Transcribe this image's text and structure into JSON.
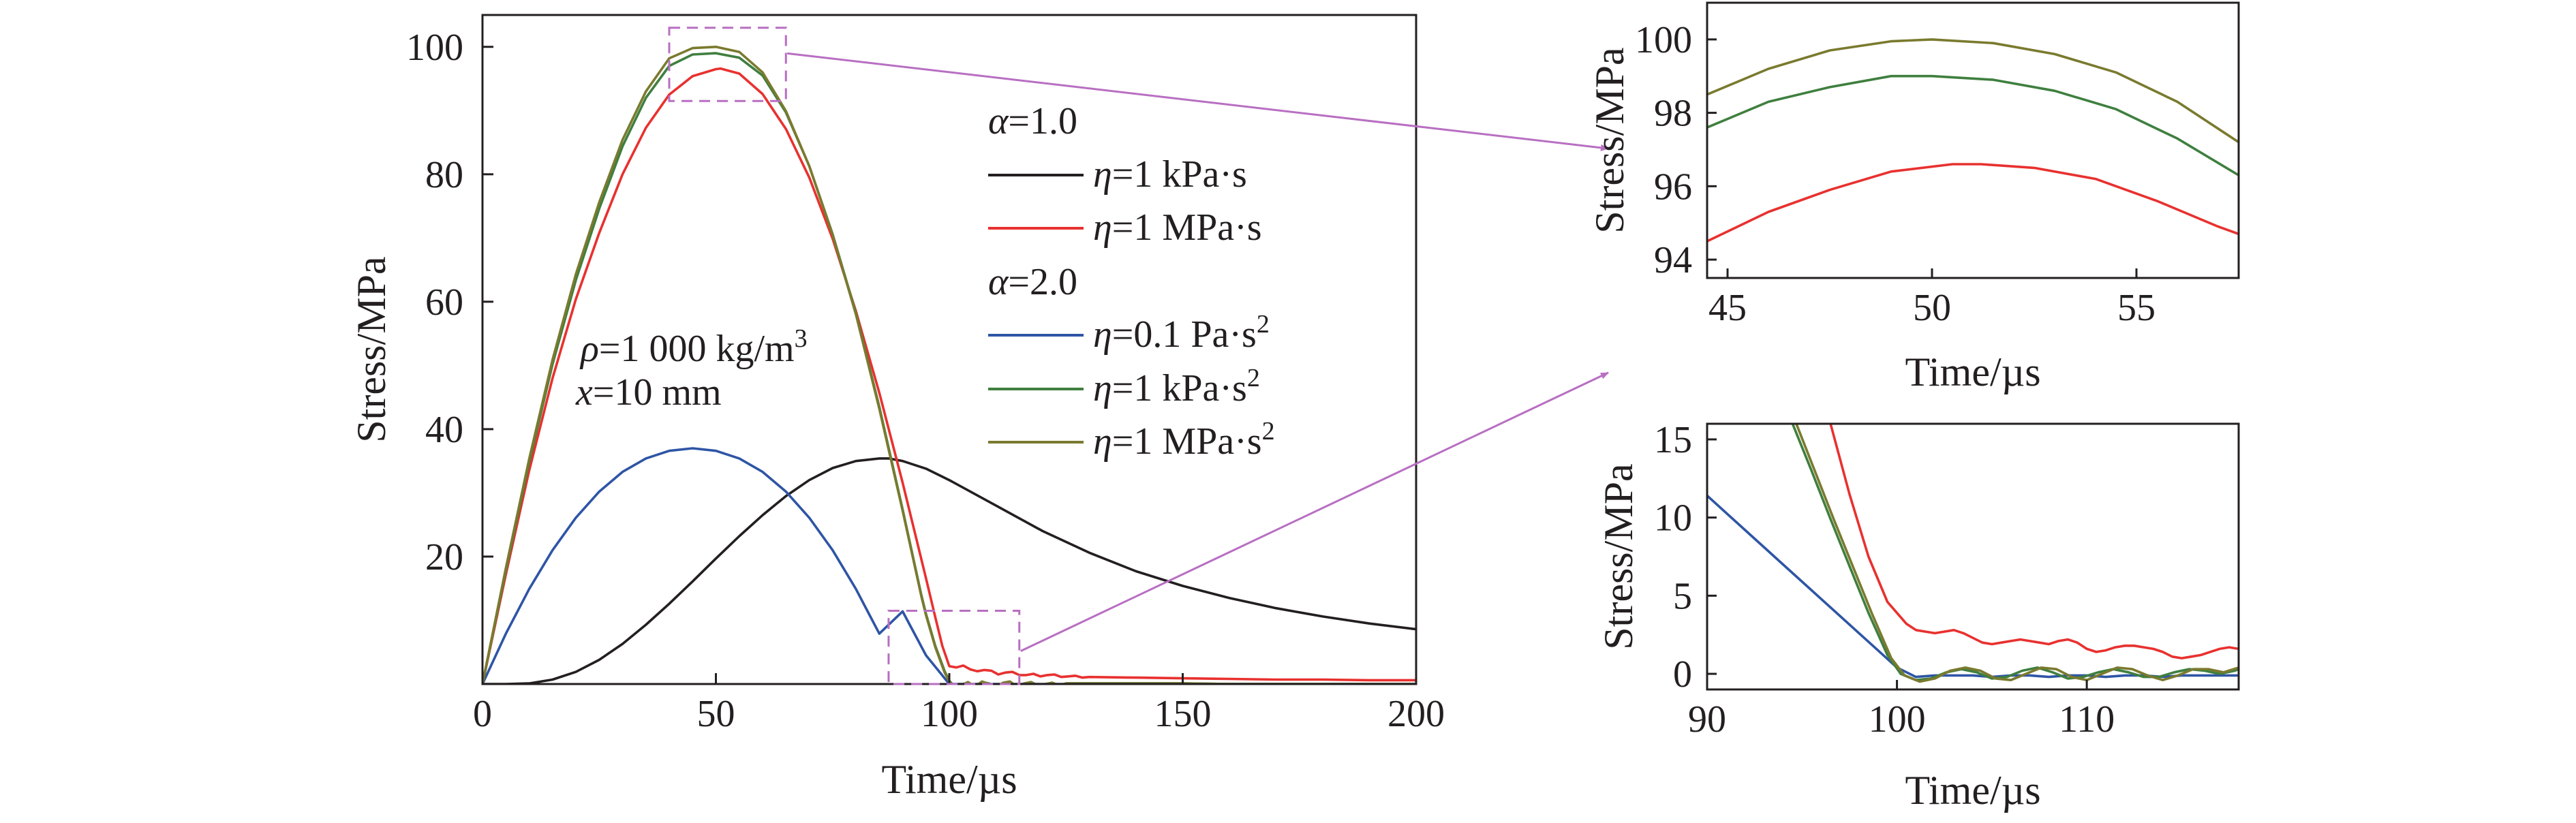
{
  "chart_data": [
    {
      "id": "main",
      "type": "line",
      "title": "",
      "xlabel": "Time/µs",
      "ylabel": "Stress/MPa",
      "xlim": [
        0,
        200
      ],
      "ylim": [
        0,
        105
      ],
      "xticks": [
        0,
        50,
        100,
        150,
        200
      ],
      "xtick_labels": [
        "0",
        "50",
        "100",
        "150",
        "200"
      ],
      "yticks": [
        20,
        40,
        60,
        80,
        100
      ],
      "ytick_labels": [
        "20",
        "40",
        "60",
        "80",
        "100"
      ],
      "grid": false,
      "legend_position": "top-right",
      "legend_groups": [
        {
          "heading": "α=1.0",
          "series": [
            "eta_1kPa_s",
            "eta_1MPa_s"
          ]
        },
        {
          "heading": "α=2.0",
          "series": [
            "eta_0.1Pa_s2",
            "eta_1kPa_s2",
            "eta_1MPa_s2"
          ]
        }
      ],
      "annotations": [
        {
          "label": "rho",
          "text": "ρ=1 000 kg/m³"
        },
        {
          "label": "x",
          "text": "x=10 mm"
        }
      ],
      "series": [
        {
          "key": "eta_1kPa_s",
          "name": "η=1 kPa·s",
          "color": "#231f20",
          "x": [
            0,
            5,
            10,
            15,
            20,
            25,
            30,
            35,
            40,
            45,
            50,
            55,
            60,
            65,
            70,
            75,
            80,
            85,
            87,
            90,
            95,
            100,
            110,
            120,
            130,
            140,
            150,
            160,
            170,
            180,
            190,
            200
          ],
          "y": [
            0,
            0,
            0.1,
            0.7,
            1.9,
            3.8,
            6.3,
            9.3,
            12.6,
            16.1,
            19.7,
            23.2,
            26.5,
            29.5,
            32.0,
            33.9,
            35.0,
            35.4,
            35.4,
            35.0,
            33.8,
            32.0,
            28.0,
            24.0,
            20.6,
            17.7,
            15.4,
            13.5,
            11.9,
            10.6,
            9.5,
            8.6
          ]
        },
        {
          "key": "eta_1MPa_s",
          "name": "η=1 MPa·s",
          "color": "#e8312f",
          "x": [
            0,
            5,
            10,
            15,
            20,
            25,
            30,
            35,
            40,
            45,
            50,
            51,
            55,
            60,
            65,
            70,
            75,
            80,
            85,
            90,
            95,
            97,
            98.5,
            100,
            101.5,
            103,
            104.5,
            106,
            107.5,
            109,
            110.5,
            112,
            113.5,
            115,
            116.5,
            118,
            119.5,
            121,
            122.5,
            124,
            125.5,
            127,
            128.5,
            130,
            140,
            150,
            160,
            170,
            180,
            190,
            200
          ],
          "y": [
            0,
            17.2,
            33.5,
            48.0,
            60.4,
            70.8,
            80.0,
            87.3,
            92.5,
            95.4,
            96.5,
            96.6,
            95.8,
            92.6,
            87.1,
            79.5,
            69.9,
            58.5,
            45.7,
            31.6,
            16.6,
            10.5,
            6.0,
            2.8,
            2.6,
            2.9,
            2.3,
            2.0,
            2.2,
            2.1,
            1.5,
            1.8,
            1.9,
            1.4,
            1.4,
            1.6,
            1.2,
            1.4,
            1.5,
            1.1,
            1.2,
            1.3,
            1.0,
            1.1,
            1.0,
            0.9,
            0.8,
            0.7,
            0.7,
            0.6,
            0.6
          ]
        },
        {
          "key": "eta_0.1Pa_s2",
          "name": "η=0.1 Pa·s²",
          "color": "#2e55a5",
          "x": [
            0,
            5,
            10,
            15,
            20,
            25,
            30,
            35,
            40,
            45,
            50,
            55,
            60,
            65,
            70,
            75,
            80,
            85,
            90,
            95,
            100,
            110,
            120,
            130,
            140,
            150,
            160,
            170,
            180,
            190,
            200
          ],
          "y": [
            0,
            7.9,
            14.9,
            21.0,
            26.1,
            30.2,
            33.3,
            35.4,
            36.6,
            37.0,
            36.6,
            35.4,
            33.3,
            30.2,
            26.1,
            21.0,
            14.9,
            7.9,
            11.4,
            4.5,
            0,
            0,
            0,
            0,
            0,
            0,
            0,
            0,
            0,
            0,
            0
          ]
        },
        {
          "key": "eta_1kPa_s2",
          "name": "η=1 kPa·s²",
          "color": "#3f7f3f",
          "x": [
            0,
            5,
            10,
            15,
            20,
            25,
            30,
            35,
            40,
            45,
            50,
            55,
            60,
            65,
            70,
            75,
            80,
            85,
            90,
            94,
            95,
            97,
            99,
            100,
            101,
            102.5,
            104,
            105.5,
            107,
            108.5,
            110,
            111.5,
            113,
            114.5,
            116,
            117.5,
            119,
            120.5,
            122,
            123.5,
            125,
            130,
            140,
            150,
            160,
            170,
            180,
            190,
            200
          ],
          "y": [
            0,
            17.9,
            34.8,
            50.2,
            63.4,
            74.6,
            84.4,
            92.0,
            97.0,
            98.8,
            99.0,
            98.3,
            95.5,
            89.7,
            81.3,
            70.6,
            58.2,
            43.5,
            27.4,
            14.0,
            11.0,
            6.0,
            2.0,
            0.5,
            -0.3,
            -0.1,
            0.2,
            -0.3,
            0.3,
            0.1,
            -0.4,
            0.1,
            0.3,
            -0.3,
            0.0,
            0.3,
            -0.2,
            -0.1,
            0.2,
            -0.2,
            0.1,
            0.1,
            0.1,
            0.1,
            0.0,
            0.0,
            0.0,
            0.0,
            0.0
          ]
        },
        {
          "key": "eta_1MPa_s2",
          "name": "η=1 MPa·s²",
          "color": "#7a7a2f",
          "x": [
            0,
            5,
            10,
            15,
            20,
            25,
            30,
            35,
            40,
            45,
            50,
            55,
            60,
            65,
            70,
            75,
            80,
            85,
            90,
            94,
            95,
            97,
            99,
            100,
            101,
            102.5,
            104,
            105.5,
            107,
            108.5,
            110,
            111.5,
            113,
            114.5,
            116,
            117.5,
            119,
            120.5,
            122,
            123.5,
            125,
            130,
            140,
            150,
            160,
            170,
            180,
            190,
            200
          ],
          "y": [
            0,
            18.2,
            35.3,
            50.9,
            64.3,
            75.6,
            85.4,
            93.0,
            98.2,
            99.8,
            100.0,
            99.2,
            96.0,
            89.9,
            81.3,
            70.5,
            58.0,
            43.2,
            27.2,
            13.8,
            10.8,
            5.8,
            1.8,
            0.4,
            -0.4,
            -0.2,
            0.3,
            -0.4,
            0.4,
            0.0,
            -0.5,
            0.2,
            0.4,
            -0.4,
            0.1,
            0.3,
            -0.3,
            0.0,
            0.2,
            -0.2,
            0.1,
            0.1,
            0.1,
            0.1,
            0.0,
            0.0,
            0.0,
            0.0,
            0.0
          ]
        }
      ],
      "zoom_regions": [
        {
          "target": "inset_top",
          "xlim": [
            40,
            65
          ],
          "ylim": [
            91.5,
            103
          ]
        },
        {
          "target": "inset_bottom",
          "xlim": [
            87,
            115
          ],
          "ylim": [
            0,
            11.5
          ]
        }
      ]
    },
    {
      "id": "inset_top",
      "type": "line",
      "title": "",
      "xlabel": "Time/µs",
      "ylabel": "Stress/MPa",
      "xlim": [
        44.5,
        57.5
      ],
      "ylim": [
        93.5,
        101
      ],
      "xticks": [
        45,
        50,
        55
      ],
      "xtick_labels": [
        "45",
        "50",
        "55"
      ],
      "yticks": [
        94,
        96,
        98,
        100
      ],
      "ytick_labels": [
        "94",
        "96",
        "98",
        "100"
      ],
      "grid": false,
      "series": [
        {
          "key": "eta_1MPa_s",
          "name": "η=1 MPa·s",
          "color": "#e8312f",
          "x": [
            44.5,
            46,
            47.5,
            49,
            50.5,
            51.2,
            52.5,
            54,
            55.5,
            57,
            57.5
          ],
          "y": [
            94.5,
            95.3,
            95.9,
            96.4,
            96.6,
            96.6,
            96.5,
            96.2,
            95.6,
            94.9,
            94.7
          ]
        },
        {
          "key": "eta_1kPa_s2",
          "name": "η=1 kPa·s²",
          "color": "#3f7f3f",
          "x": [
            44.5,
            46,
            47.5,
            49,
            50,
            51.5,
            53,
            54.5,
            56,
            57.5
          ],
          "y": [
            97.6,
            98.3,
            98.7,
            99.0,
            99.0,
            98.9,
            98.6,
            98.1,
            97.3,
            96.3
          ]
        },
        {
          "key": "eta_1MPa_s2",
          "name": "η=1 MPa·s²",
          "color": "#7a7a2f",
          "x": [
            44.5,
            46,
            47.5,
            49,
            50,
            51.5,
            53,
            54.5,
            56,
            57.5
          ],
          "y": [
            98.5,
            99.2,
            99.7,
            99.95,
            100.0,
            99.9,
            99.6,
            99.1,
            98.3,
            97.2
          ]
        }
      ]
    },
    {
      "id": "inset_bottom",
      "type": "line",
      "title": "",
      "xlabel": "Time/µs",
      "ylabel": "Stress/MPa",
      "xlim": [
        90,
        118
      ],
      "ylim": [
        -1,
        16
      ],
      "xticks": [
        90,
        100,
        110
      ],
      "xtick_labels": [
        "90",
        "100",
        "110"
      ],
      "yticks": [
        0,
        5,
        10,
        15
      ],
      "ytick_labels": [
        "0",
        "5",
        "10",
        "15"
      ],
      "grid": false,
      "series": [
        {
          "key": "eta_1MPa_s",
          "name": "η=1 MPa·s",
          "color": "#e8312f",
          "x": [
            96.5,
            97.5,
            98.5,
            99.5,
            100.5,
            101,
            101.5,
            102,
            102.5,
            103,
            103.5,
            104,
            104.5,
            105,
            105.5,
            106,
            106.5,
            107,
            107.5,
            108,
            108.5,
            109,
            109.5,
            110,
            110.5,
            111,
            111.5,
            112,
            112.5,
            113,
            113.5,
            114,
            114.5,
            115,
            115.5,
            116,
            116.5,
            117,
            117.5,
            118
          ],
          "y": [
            16,
            11.5,
            7.5,
            4.6,
            3.2,
            2.8,
            2.7,
            2.6,
            2.7,
            2.8,
            2.6,
            2.3,
            2.0,
            1.9,
            2.0,
            2.1,
            2.2,
            2.1,
            2.0,
            1.9,
            2.1,
            2.2,
            2.0,
            1.6,
            1.4,
            1.5,
            1.7,
            1.8,
            1.8,
            1.7,
            1.6,
            1.4,
            1.1,
            1.0,
            1.1,
            1.2,
            1.4,
            1.6,
            1.7,
            1.6
          ]
        },
        {
          "key": "eta_0.1Pa_s2",
          "name": "η=0.1 Pa·s²",
          "color": "#2e55a5",
          "x": [
            90,
            92,
            94,
            96,
            98,
            99,
            100,
            101,
            102,
            103,
            104,
            105,
            106,
            107,
            108,
            109,
            110,
            111,
            112,
            113,
            114,
            115,
            116,
            117,
            118
          ],
          "y": [
            11.4,
            9.2,
            7.0,
            4.8,
            2.6,
            1.5,
            0.4,
            -0.2,
            -0.1,
            -0.1,
            -0.1,
            -0.2,
            -0.1,
            -0.1,
            -0.2,
            -0.1,
            -0.1,
            -0.2,
            -0.1,
            -0.1,
            -0.2,
            -0.1,
            -0.1,
            -0.1,
            -0.1
          ]
        },
        {
          "key": "eta_1kPa_s2",
          "name": "η=1 kPa·s²",
          "color": "#3f7f3f",
          "x": [
            94.5,
            95.5,
            96.5,
            97.5,
            98.5,
            99.5,
            100.2,
            101,
            101.8,
            102.6,
            103.4,
            104.2,
            105,
            105.8,
            106.6,
            107.4,
            108.2,
            109,
            109.8,
            110.6,
            111.4,
            112.2,
            113,
            113.8,
            114.6,
            115.4,
            116.2,
            117,
            117.8,
            118
          ],
          "y": [
            16,
            13.0,
            9.9,
            6.9,
            3.9,
            1.2,
            0.0,
            -0.4,
            -0.3,
            0.1,
            0.3,
            0.1,
            -0.3,
            -0.2,
            0.2,
            0.4,
            0.1,
            -0.3,
            -0.2,
            0.1,
            0.3,
            0.1,
            -0.2,
            -0.2,
            0.1,
            0.3,
            0.2,
            0.0,
            0.2,
            0.3
          ]
        },
        {
          "key": "eta_1MPa_s2",
          "name": "η=1 MPa·s²",
          "color": "#7a7a2f",
          "x": [
            94.7,
            95.7,
            96.7,
            97.7,
            98.7,
            99.7,
            100.4,
            101.2,
            102,
            102.8,
            103.6,
            104.4,
            105.2,
            106,
            106.8,
            107.6,
            108.4,
            109.2,
            110,
            110.8,
            111.6,
            112.4,
            113.2,
            114,
            114.8,
            115.6,
            116.4,
            117.2,
            118
          ],
          "y": [
            16,
            12.9,
            9.8,
            6.8,
            3.8,
            1.0,
            -0.1,
            -0.5,
            -0.3,
            0.2,
            0.4,
            0.2,
            -0.3,
            -0.4,
            0.0,
            0.4,
            0.3,
            -0.2,
            -0.4,
            0.0,
            0.4,
            0.3,
            -0.1,
            -0.4,
            -0.1,
            0.3,
            0.3,
            0.1,
            0.4
          ]
        }
      ]
    }
  ],
  "colors": {
    "axis": "#231f20",
    "zoom_box": "#b86fc2",
    "callout": "#b86fc2"
  }
}
